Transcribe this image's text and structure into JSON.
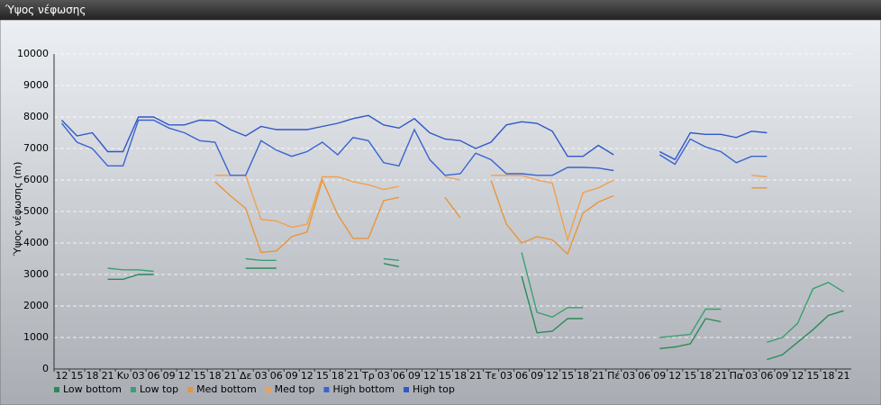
{
  "window_title": "Ύψος νέφωσης",
  "chart_data": {
    "type": "line",
    "y_label": "Ύψος νέφωσης (m)",
    "categories": [
      "12",
      "15",
      "18",
      "21",
      "Κυ",
      "03",
      "06",
      "09",
      "12",
      "15",
      "18",
      "21",
      "Δε",
      "03",
      "06",
      "09",
      "12",
      "15",
      "18",
      "21",
      "Τρ",
      "03",
      "06",
      "09",
      "12",
      "15",
      "18",
      "21",
      "Τε",
      "03",
      "06",
      "09",
      "12",
      "15",
      "18",
      "21",
      "Πέ",
      "03",
      "06",
      "09",
      "12",
      "15",
      "18",
      "21",
      "Πα",
      "03",
      "06",
      "09",
      "12",
      "15",
      "18",
      "21"
    ],
    "ylim": [
      0,
      10000
    ],
    "yticks": [
      0,
      1000,
      2000,
      3000,
      4000,
      5000,
      6000,
      7000,
      8000,
      9000,
      10000
    ],
    "grid": true,
    "series": [
      {
        "name": "Low bottom",
        "color": "#2a8a57",
        "values": [
          null,
          null,
          null,
          2850,
          2850,
          3000,
          3000,
          null,
          null,
          null,
          null,
          null,
          3200,
          3200,
          3200,
          null,
          null,
          null,
          null,
          null,
          null,
          3350,
          3250,
          null,
          null,
          null,
          null,
          null,
          null,
          null,
          2950,
          1150,
          1200,
          1600,
          1600,
          null,
          null,
          null,
          null,
          650,
          700,
          800,
          1600,
          1500,
          null,
          null,
          300,
          450,
          850,
          1250,
          1700,
          1850
        ]
      },
      {
        "name": "Low top",
        "color": "#3aa070",
        "values": [
          null,
          null,
          null,
          3200,
          3150,
          3150,
          3100,
          null,
          null,
          null,
          null,
          null,
          3500,
          3450,
          3450,
          null,
          null,
          null,
          null,
          null,
          null,
          3500,
          3450,
          null,
          null,
          null,
          null,
          null,
          null,
          null,
          3700,
          1800,
          1650,
          1950,
          1950,
          null,
          null,
          null,
          null,
          1000,
          1050,
          1100,
          1900,
          1900,
          null,
          null,
          850,
          1000,
          1450,
          2550,
          2750,
          2450
        ]
      },
      {
        "name": "Med bottom",
        "color": "#e8953a",
        "values": [
          null,
          null,
          null,
          null,
          null,
          null,
          null,
          null,
          null,
          null,
          5950,
          5500,
          5100,
          3700,
          3750,
          4200,
          4350,
          6000,
          4900,
          4150,
          4150,
          5350,
          5450,
          null,
          null,
          5450,
          4800,
          null,
          6000,
          4600,
          4000,
          4200,
          4100,
          3650,
          4950,
          5300,
          5500,
          null,
          null,
          null,
          null,
          null,
          null,
          null,
          null,
          5750,
          5750,
          null,
          null,
          null,
          null,
          null
        ]
      },
      {
        "name": "Med top",
        "color": "#f0a050",
        "values": [
          null,
          null,
          null,
          null,
          null,
          null,
          null,
          null,
          null,
          null,
          6150,
          6150,
          6150,
          4750,
          4700,
          4500,
          4600,
          6100,
          6100,
          5950,
          5850,
          5700,
          5800,
          null,
          null,
          6100,
          6000,
          null,
          6150,
          6150,
          6150,
          6000,
          5900,
          4100,
          5600,
          5750,
          6000,
          null,
          null,
          null,
          null,
          null,
          null,
          null,
          null,
          6150,
          6100,
          null,
          null,
          null,
          null,
          null
        ]
      },
      {
        "name": "High bottom",
        "color": "#3a64d0",
        "values": [
          7800,
          7200,
          7000,
          6450,
          6450,
          7900,
          7900,
          7650,
          7500,
          7250,
          7200,
          6150,
          6150,
          7250,
          6950,
          6750,
          6900,
          7200,
          6800,
          7350,
          7250,
          6550,
          6450,
          7600,
          6650,
          6150,
          6200,
          6850,
          6650,
          6200,
          6200,
          6150,
          6150,
          6400,
          6400,
          6380,
          6300,
          null,
          null,
          6800,
          6500,
          7300,
          7050,
          6900,
          6550,
          6750,
          6750,
          null,
          null,
          null,
          null,
          null
        ]
      },
      {
        "name": "High top",
        "color": "#2f58c8",
        "values": [
          7900,
          7400,
          7500,
          6900,
          6900,
          8000,
          8000,
          7750,
          7750,
          7900,
          7880,
          7600,
          7400,
          7700,
          7600,
          7600,
          7600,
          7700,
          7800,
          7950,
          8050,
          7750,
          7650,
          7950,
          7500,
          7300,
          7250,
          7000,
          7200,
          7750,
          7850,
          7800,
          7550,
          6750,
          6750,
          7100,
          6800,
          null,
          null,
          6900,
          6650,
          7500,
          7450,
          7450,
          7350,
          7550,
          7500,
          null,
          null,
          null,
          null,
          null
        ]
      }
    ]
  }
}
